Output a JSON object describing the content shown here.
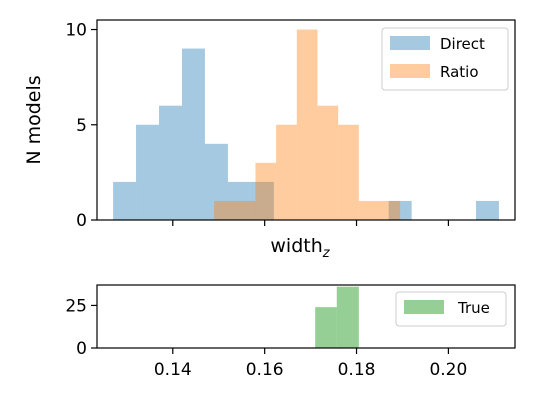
{
  "chart_data": [
    {
      "type": "bar",
      "subtype": "histogram-overlay",
      "xlabel_base": "width",
      "xlabel_sub": "z",
      "ylabel": "N models",
      "xlim": [
        0.1235,
        0.2145
      ],
      "ylim": [
        0,
        10.5
      ],
      "yticks": [
        0,
        5,
        10
      ],
      "legend_position": "top-right",
      "series": [
        {
          "name": "Direct",
          "color": "#1f77b4",
          "alpha": 0.4,
          "bins": [
            {
              "x0": 0.127,
              "x1": 0.132,
              "count": 2
            },
            {
              "x0": 0.132,
              "x1": 0.137,
              "count": 5
            },
            {
              "x0": 0.137,
              "x1": 0.142,
              "count": 6
            },
            {
              "x0": 0.142,
              "x1": 0.147,
              "count": 9
            },
            {
              "x0": 0.147,
              "x1": 0.152,
              "count": 4
            },
            {
              "x0": 0.152,
              "x1": 0.157,
              "count": 2
            },
            {
              "x0": 0.157,
              "x1": 0.162,
              "count": 2
            },
            {
              "x0": 0.187,
              "x1": 0.192,
              "count": 1
            },
            {
              "x0": 0.206,
              "x1": 0.211,
              "count": 1
            }
          ]
        },
        {
          "name": "Ratio",
          "color": "#ff7f0e",
          "alpha": 0.4,
          "bins": [
            {
              "x0": 0.149,
              "x1": 0.1535,
              "count": 1
            },
            {
              "x0": 0.1535,
              "x1": 0.158,
              "count": 1
            },
            {
              "x0": 0.158,
              "x1": 0.1625,
              "count": 3
            },
            {
              "x0": 0.1625,
              "x1": 0.167,
              "count": 5
            },
            {
              "x0": 0.167,
              "x1": 0.1715,
              "count": 10
            },
            {
              "x0": 0.1715,
              "x1": 0.176,
              "count": 6
            },
            {
              "x0": 0.176,
              "x1": 0.1805,
              "count": 5
            },
            {
              "x0": 0.1805,
              "x1": 0.185,
              "count": 1
            },
            {
              "x0": 0.185,
              "x1": 0.1895,
              "count": 1
            }
          ]
        }
      ]
    },
    {
      "type": "bar",
      "subtype": "histogram",
      "xlim": [
        0.1235,
        0.2145
      ],
      "ylim": [
        0,
        37
      ],
      "yticks": [
        0,
        25
      ],
      "xticks": [
        0.14,
        0.16,
        0.18,
        0.2
      ],
      "xtick_labels": [
        "0.14",
        "0.16",
        "0.18",
        "0.20"
      ],
      "legend_position": "top-right",
      "series": [
        {
          "name": "True",
          "color": "#2ca02c",
          "alpha": 0.5,
          "bins": [
            {
              "x0": 0.171,
              "x1": 0.1757,
              "count": 24
            },
            {
              "x0": 0.1757,
              "x1": 0.1805,
              "count": 36
            }
          ]
        }
      ]
    }
  ]
}
